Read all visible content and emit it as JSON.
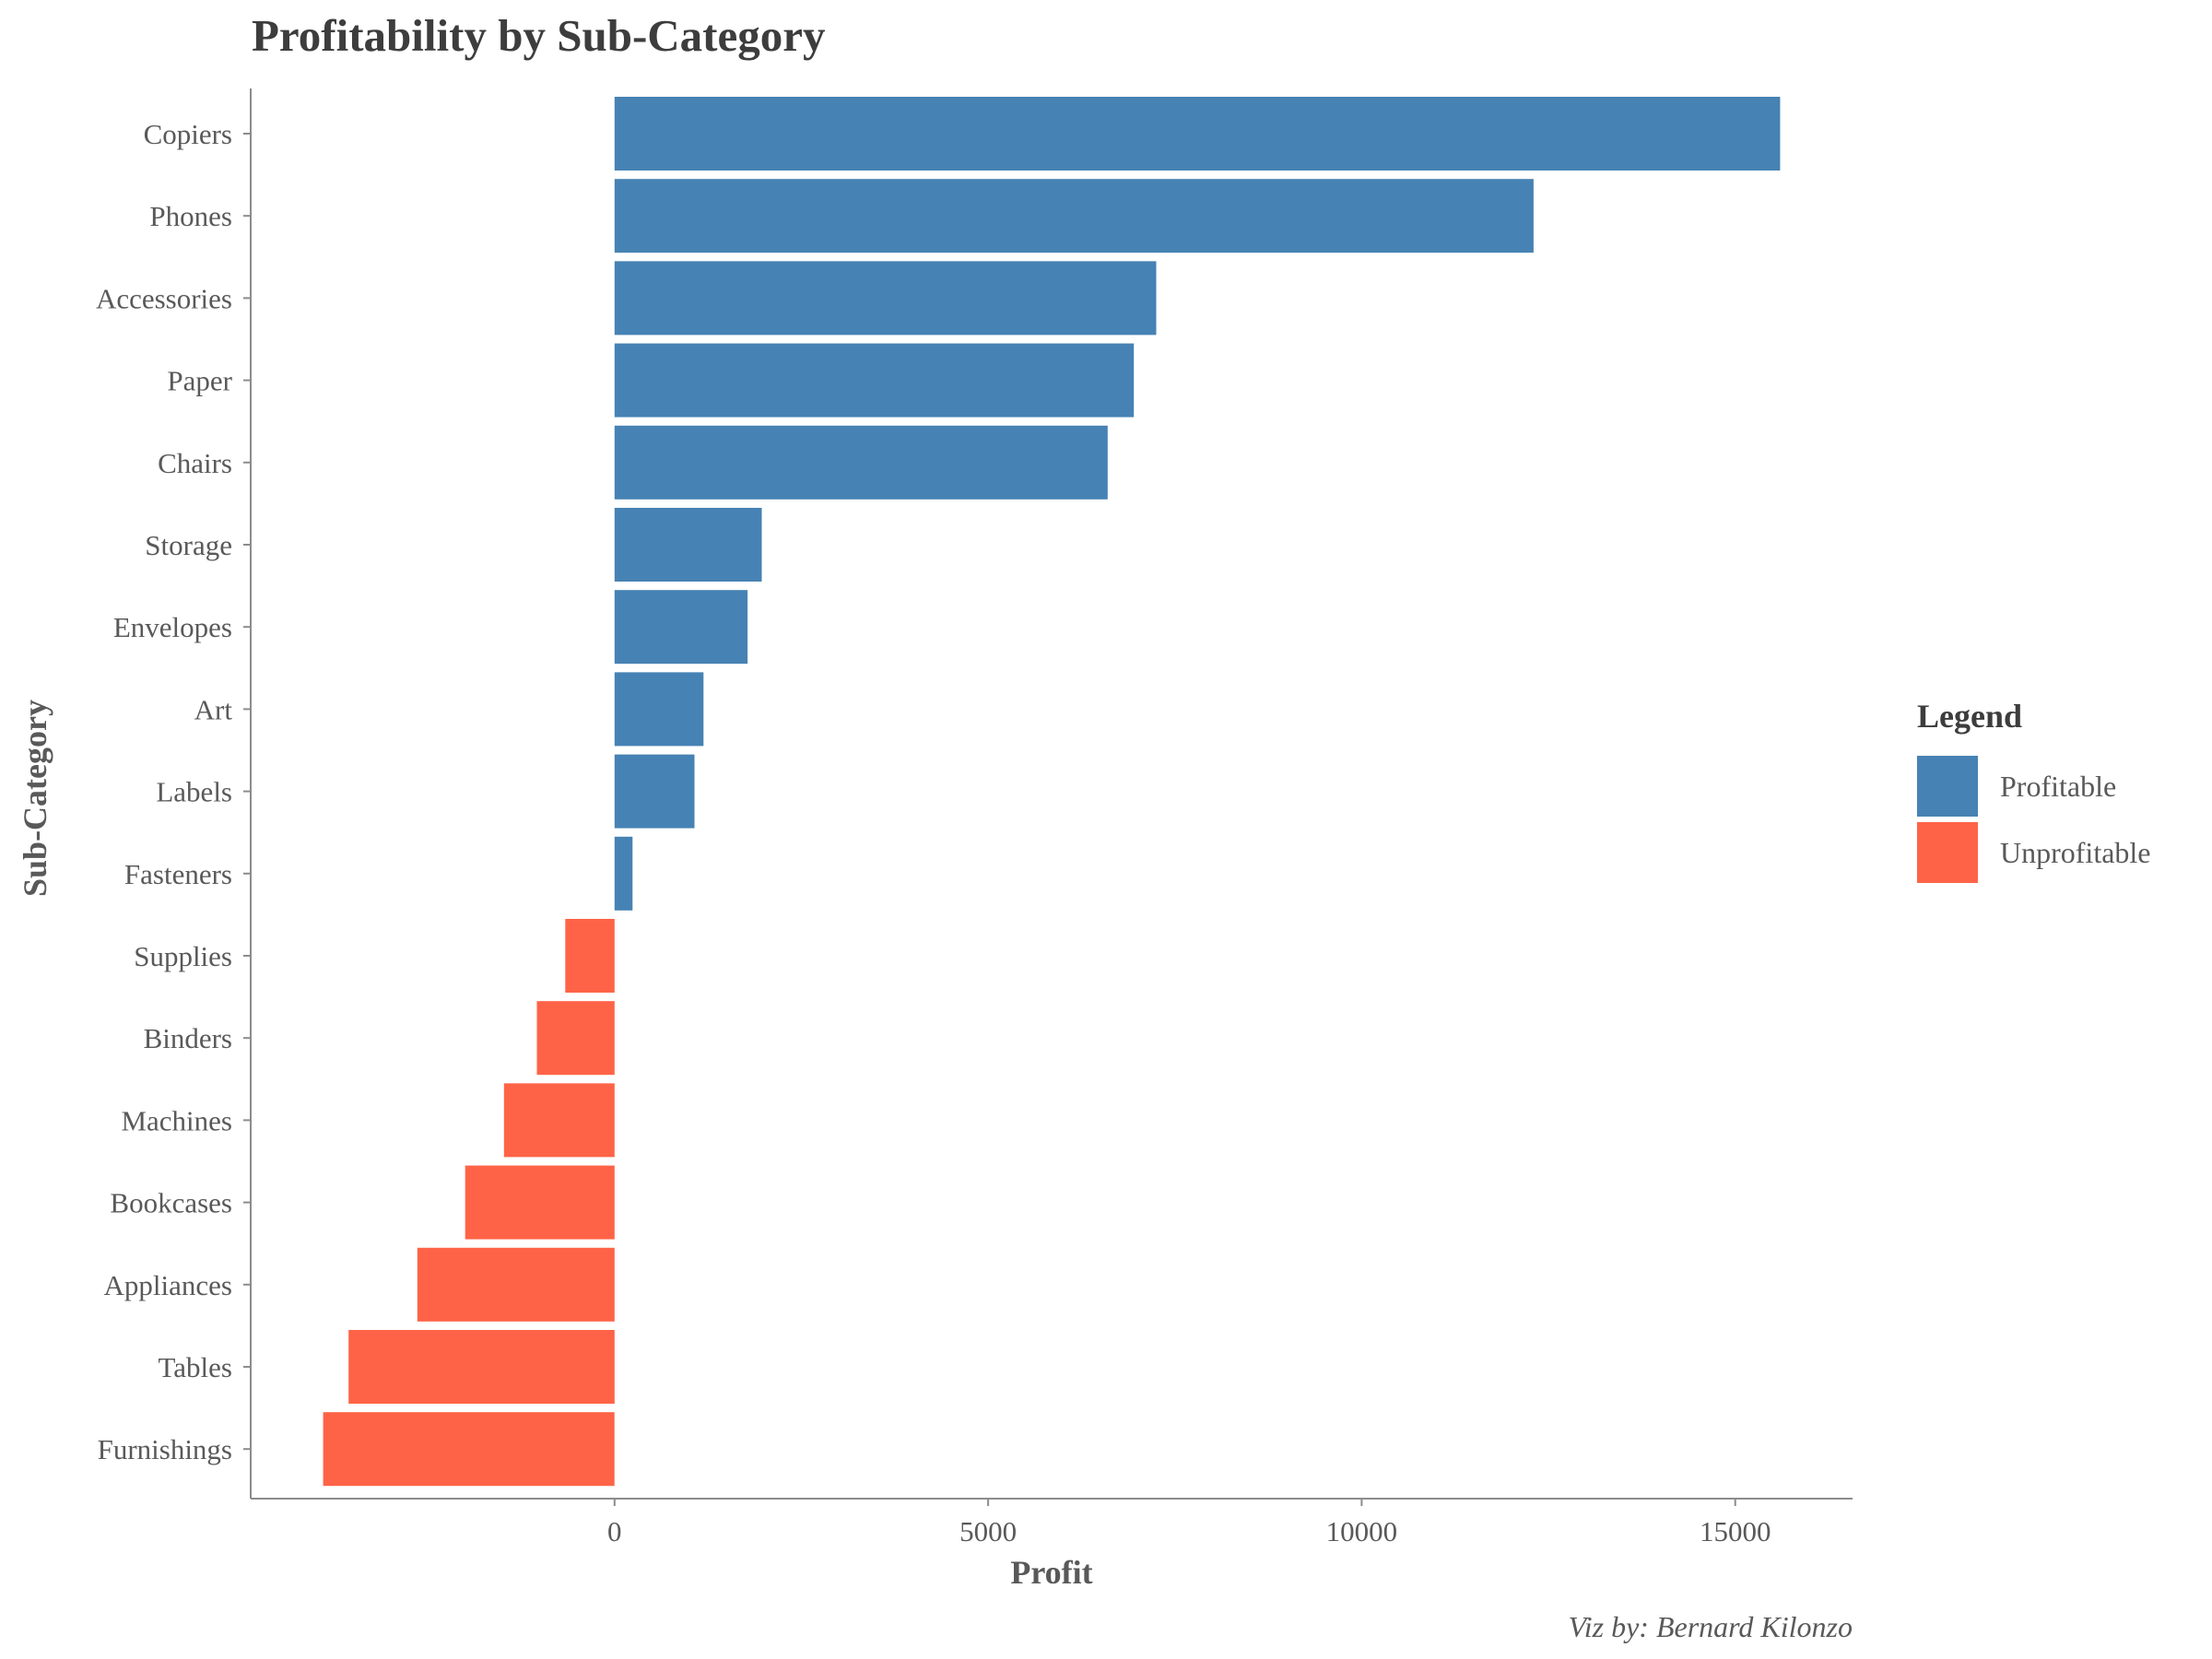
{
  "chart_data": {
    "type": "bar",
    "orientation": "horizontal",
    "title": "Profitability by Sub-Category",
    "xlabel": "Profit",
    "ylabel": "Sub-Category",
    "caption": "Viz by: Bernard Kilonzo",
    "categories": [
      "Copiers",
      "Phones",
      "Accessories",
      "Paper",
      "Chairs",
      "Storage",
      "Envelopes",
      "Art",
      "Labels",
      "Fasteners",
      "Supplies",
      "Binders",
      "Machines",
      "Bookcases",
      "Appliances",
      "Tables",
      "Furnishings"
    ],
    "values": [
      15600,
      12300,
      7250,
      6950,
      6600,
      1970,
      1780,
      1190,
      1070,
      240,
      -660,
      -1040,
      -1480,
      -2000,
      -2640,
      -3560,
      -3900
    ],
    "groups": [
      "Profitable",
      "Profitable",
      "Profitable",
      "Profitable",
      "Profitable",
      "Profitable",
      "Profitable",
      "Profitable",
      "Profitable",
      "Profitable",
      "Unprofitable",
      "Unprofitable",
      "Unprofitable",
      "Unprofitable",
      "Unprofitable",
      "Unprofitable",
      "Unprofitable"
    ],
    "xlim": [
      -4870,
      16570
    ],
    "xticks": [
      0,
      5000,
      10000,
      15000
    ],
    "xtick_labels": [
      "0",
      "5000",
      "10000",
      "15000"
    ],
    "grid": false,
    "legend": {
      "title": "Legend",
      "position": "right",
      "entries": [
        {
          "label": "Profitable",
          "color": "#4682b4"
        },
        {
          "label": "Unprofitable",
          "color": "#ff6347"
        }
      ]
    }
  }
}
